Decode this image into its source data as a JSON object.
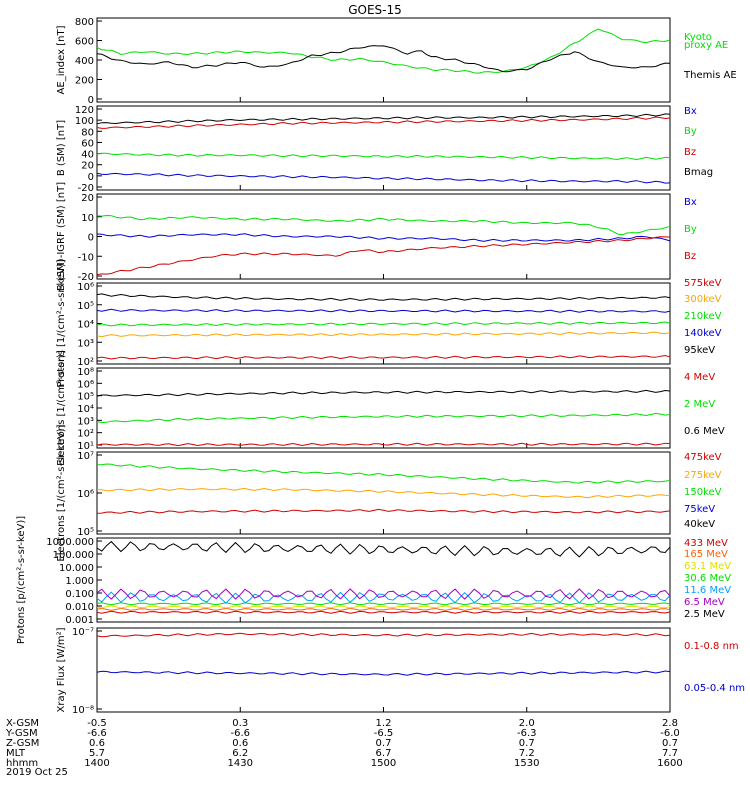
{
  "title": "GOES-15",
  "footer": {
    "rows": [
      {
        "label": "X-GSM",
        "values": [
          "-0.5",
          "0.3",
          "1.2",
          "2.0",
          "2.8"
        ]
      },
      {
        "label": "Y-GSM",
        "values": [
          "-6.6",
          "-6.6",
          "-6.5",
          "-6.3",
          "-6.0"
        ]
      },
      {
        "label": "Z-GSM",
        "values": [
          "0.6",
          "0.6",
          "0.7",
          "0.7",
          "0.7"
        ]
      },
      {
        "label": "MLT",
        "values": [
          "5.7",
          "6.2",
          "6.7",
          "7.2",
          "7.7"
        ]
      },
      {
        "label": "hhmm",
        "values": [
          "1400",
          "1430",
          "1500",
          "1530",
          "1600"
        ]
      }
    ],
    "date": "2019 Oct 25"
  },
  "chart_data": [
    {
      "type": "line",
      "ylabel": "AE_index [nT]",
      "yticks": [
        "0",
        "200",
        "400",
        "600",
        "800"
      ],
      "ylim": [
        0,
        800
      ],
      "xlim": [
        0,
        120
      ],
      "series": [
        {
          "name": "Kyoto proxy AE",
          "color": "#00e000",
          "x": [
            0,
            5,
            10,
            15,
            20,
            25,
            30,
            35,
            40,
            45,
            50,
            55,
            60,
            65,
            70,
            75,
            80,
            85,
            90,
            95,
            100,
            103,
            105,
            110,
            115,
            120
          ],
          "y": [
            520,
            460,
            480,
            460,
            460,
            470,
            480,
            470,
            470,
            430,
            400,
            410,
            380,
            340,
            310,
            300,
            280,
            290,
            330,
            420,
            560,
            640,
            700,
            600,
            570,
            590
          ]
        },
        {
          "name": "Themis AE",
          "color": "#000000",
          "x": [
            0,
            5,
            10,
            15,
            20,
            25,
            30,
            35,
            40,
            45,
            50,
            55,
            60,
            65,
            68,
            70,
            75,
            80,
            85,
            90,
            95,
            100,
            105,
            110,
            115,
            120
          ],
          "y": [
            460,
            390,
            360,
            380,
            330,
            350,
            380,
            330,
            360,
            440,
            470,
            520,
            540,
            460,
            490,
            430,
            400,
            350,
            290,
            310,
            410,
            480,
            380,
            330,
            330,
            370
          ]
        }
      ],
      "labels": [
        {
          "text": "Kyoto",
          "color": "#00e000"
        },
        {
          "text": "proxy AE",
          "color": "#00e000"
        },
        {
          "text": "Themis AE",
          "color": "#000000"
        }
      ]
    },
    {
      "type": "line",
      "ylabel": "B (SM) [nT]",
      "yticks": [
        "-20",
        "0",
        "20",
        "40",
        "60",
        "80",
        "100",
        "120"
      ],
      "ylim": [
        -25,
        120
      ],
      "xlim": [
        0,
        120
      ],
      "series": [
        {
          "name": "Bx",
          "color": "#0000d0",
          "x": [
            0,
            10,
            20,
            30,
            40,
            50,
            60,
            70,
            80,
            90,
            100,
            110,
            120
          ],
          "y": [
            3,
            2,
            0,
            -1,
            -2,
            -3,
            -5,
            -6,
            -8,
            -9,
            -10,
            -10,
            -12
          ]
        },
        {
          "name": "By",
          "color": "#00e000",
          "x": [
            0,
            10,
            20,
            30,
            40,
            50,
            60,
            70,
            80,
            90,
            100,
            110,
            120
          ],
          "y": [
            38,
            36,
            35,
            35,
            34,
            34,
            33,
            33,
            32,
            31,
            30,
            29,
            30
          ]
        },
        {
          "name": "Bz",
          "color": "#d00000",
          "x": [
            0,
            10,
            20,
            30,
            40,
            50,
            60,
            70,
            80,
            90,
            100,
            110,
            120
          ],
          "y": [
            82,
            84,
            86,
            88,
            90,
            91,
            92,
            93,
            94,
            95,
            96,
            98,
            100
          ]
        },
        {
          "name": "Bmag",
          "color": "#000000",
          "x": [
            0,
            10,
            20,
            30,
            40,
            50,
            60,
            70,
            80,
            90,
            100,
            110,
            120
          ],
          "y": [
            90,
            92,
            94,
            96,
            97,
            98,
            99,
            100,
            100,
            101,
            102,
            103,
            105
          ]
        }
      ],
      "labels": [
        {
          "text": "Bx",
          "color": "#0000d0"
        },
        {
          "text": "By",
          "color": "#00e000"
        },
        {
          "text": "Bz",
          "color": "#d00000"
        },
        {
          "text": "Bmag",
          "color": "#000000"
        }
      ]
    },
    {
      "type": "line",
      "ylabel": "B (SM)-IGRF (SM) [nT]",
      "yticks": [
        "-20",
        "-10",
        "0",
        "10",
        "20"
      ],
      "ylim": [
        -22,
        22
      ],
      "xlim": [
        0,
        120
      ],
      "series": [
        {
          "name": "Bx",
          "color": "#0000d0",
          "x": [
            0,
            10,
            20,
            30,
            40,
            50,
            60,
            70,
            80,
            90,
            100,
            110,
            115,
            120
          ],
          "y": [
            1,
            0,
            1,
            1,
            0,
            0,
            -1,
            -1,
            -2,
            -2,
            -2,
            -1,
            0,
            -2
          ]
        },
        {
          "name": "By",
          "color": "#00e000",
          "x": [
            0,
            10,
            20,
            30,
            40,
            50,
            60,
            70,
            80,
            90,
            100,
            105,
            110,
            115,
            120
          ],
          "y": [
            11,
            9,
            10,
            9,
            9,
            8,
            9,
            8,
            8,
            7,
            7,
            5,
            1,
            3,
            5
          ]
        },
        {
          "name": "Bz",
          "color": "#d00000",
          "x": [
            0,
            5,
            10,
            15,
            20,
            25,
            30,
            40,
            50,
            55,
            60,
            70,
            80,
            90,
            100,
            110,
            120
          ],
          "y": [
            -20,
            -18,
            -16,
            -14,
            -12,
            -10,
            -9,
            -9,
            -10,
            -7,
            -8,
            -6,
            -5,
            -4,
            -3,
            -2,
            0
          ]
        }
      ],
      "labels": [
        {
          "text": "Bx",
          "color": "#0000d0"
        },
        {
          "text": "By",
          "color": "#00e000"
        },
        {
          "text": "Bz",
          "color": "#d00000"
        }
      ]
    },
    {
      "type": "line",
      "ylog": true,
      "ylabel": "Protons [1/(cm²-s-sr-keV)]",
      "yticks": [
        "10²",
        "10³",
        "10⁴",
        "10⁵",
        "10⁶"
      ],
      "ylim": [
        70,
        1000000
      ],
      "xlim": [
        0,
        120
      ],
      "series": [
        {
          "name": "575keV",
          "color": "#d00000",
          "x": [
            0,
            30,
            60,
            90,
            120
          ],
          "y": [
            140,
            150,
            150,
            160,
            170
          ]
        },
        {
          "name": "300keV",
          "color": "#ffa500",
          "x": [
            0,
            30,
            60,
            90,
            120
          ],
          "y": [
            2000,
            2200,
            2300,
            2500,
            2800
          ]
        },
        {
          "name": "210keV",
          "color": "#00e000",
          "x": [
            0,
            30,
            60,
            90,
            120
          ],
          "y": [
            7000,
            7500,
            8000,
            8500,
            9000
          ]
        },
        {
          "name": "140keV",
          "color": "#0000d0",
          "x": [
            0,
            30,
            60,
            90,
            120
          ],
          "y": [
            40000,
            38000,
            37000,
            36000,
            35000
          ]
        },
        {
          "name": "95keV",
          "color": "#000000",
          "x": [
            0,
            20,
            40,
            60,
            80,
            100,
            120
          ],
          "y": [
            250000,
            180000,
            150000,
            140000,
            150000,
            160000,
            180000
          ]
        }
      ],
      "labels": [
        {
          "text": "575keV",
          "color": "#d00000"
        },
        {
          "text": "300keV",
          "color": "#ffa500"
        },
        {
          "text": "210keV",
          "color": "#00e000"
        },
        {
          "text": "140keV",
          "color": "#0000d0"
        },
        {
          "text": "95keV",
          "color": "#000000"
        }
      ]
    },
    {
      "type": "line",
      "ylog": true,
      "ylabel": "Electrons [1/(cm²-s-sr)]",
      "yticks": [
        "10¹",
        "10²",
        "10³",
        "10⁴",
        "10⁵",
        "10⁶",
        "10⁸"
      ],
      "ylim": [
        8,
        100000000
      ],
      "xlim": [
        0,
        120
      ],
      "series": [
        {
          "name": "4 MeV",
          "color": "#d00000",
          "x": [
            0,
            30,
            60,
            90,
            120
          ],
          "y": [
            16,
            16,
            17,
            17,
            18
          ]
        },
        {
          "name": "2 MeV",
          "color": "#00e000",
          "x": [
            0,
            20,
            40,
            60,
            80,
            100,
            120
          ],
          "y": [
            1600,
            3000,
            4000,
            5000,
            5500,
            6000,
            8000
          ]
        },
        {
          "name": "0.6 MeV",
          "color": "#000000",
          "x": [
            0,
            20,
            40,
            60,
            80,
            100,
            120
          ],
          "y": [
            350000,
            450000,
            600000,
            700000,
            750000,
            800000,
            850000
          ]
        }
      ],
      "labels": [
        {
          "text": "4 MeV",
          "color": "#d00000"
        },
        {
          "text": "2 MeV",
          "color": "#00e000"
        },
        {
          "text": "0.6 MeV",
          "color": "#000000"
        }
      ]
    },
    {
      "type": "line",
      "ylog": true,
      "ylabel": "Electrons [1/(cm²-s-sr-keV)]",
      "yticks": [
        "10⁵",
        "10⁶",
        "10⁷"
      ],
      "ylim": [
        20000,
        10000000
      ],
      "xlim": [
        0,
        120
      ],
      "series": [
        {
          "name": "475keV",
          "color": "#d00000",
          "x": [
            0,
            20,
            40,
            60,
            80,
            100,
            120
          ],
          "y": [
            100000,
            110000,
            115000,
            120000,
            110000,
            105000,
            110000
          ]
        },
        {
          "name": "275keV",
          "color": "#ffa500",
          "x": [
            0,
            20,
            40,
            60,
            80,
            100,
            120
          ],
          "y": [
            550000,
            600000,
            580000,
            500000,
            400000,
            330000,
            380000
          ]
        },
        {
          "name": "150keV",
          "color": "#00e000",
          "x": [
            0,
            20,
            40,
            60,
            80,
            100,
            120
          ],
          "y": [
            4000000,
            2800000,
            2200000,
            1800000,
            1300000,
            1000000,
            1100000
          ]
        }
      ],
      "labels": [
        {
          "text": "475keV",
          "color": "#d00000"
        },
        {
          "text": "275keV",
          "color": "#ffa500"
        },
        {
          "text": "150keV",
          "color": "#00e000"
        },
        {
          "text": "75keV",
          "color": "#0000d0"
        },
        {
          "text": "40keV",
          "color": "#000000"
        }
      ]
    },
    {
      "type": "line",
      "ylog": true,
      "ylabel": "Protons [p/(cm²-s-sr-keV)]",
      "yticks": [
        "0.001",
        "0.010",
        "0.100",
        "1.000",
        "10.000",
        "100.000",
        "1000.000"
      ],
      "ylim": [
        0.001,
        1000
      ],
      "xlim": [
        0,
        120
      ],
      "series": [
        {
          "name": "433 MeV",
          "color": "#d00000",
          "x": [
            0,
            30,
            60,
            90,
            120
          ],
          "y": [
            0.005,
            0.005,
            0.005,
            0.005,
            0.005
          ]
        },
        {
          "name": "165 MeV",
          "color": "#ff6000",
          "x": [
            0,
            30,
            60,
            90,
            120
          ],
          "y": [
            0.008,
            0.008,
            0.008,
            0.008,
            0.008
          ]
        },
        {
          "name": "63.1 MeV",
          "color": "#e0e000",
          "x": [
            0,
            30,
            60,
            90,
            120
          ],
          "y": [
            0.012,
            0.012,
            0.012,
            0.012,
            0.012
          ]
        },
        {
          "name": "30.6 MeV",
          "color": "#00e000",
          "x": [
            0,
            30,
            60,
            90,
            120
          ],
          "y": [
            0.02,
            0.02,
            0.02,
            0.02,
            0.02
          ]
        },
        {
          "name": "11.6 MeV",
          "color": "#00a0ff",
          "x": [
            0,
            30,
            60,
            90,
            120
          ],
          "y": [
            0.06,
            0.05,
            0.06,
            0.05,
            0.06
          ]
        },
        {
          "name": "6.5 MeV",
          "color": "#a000c0",
          "x": [
            0,
            30,
            60,
            90,
            120
          ],
          "y": [
            0.1,
            0.1,
            0.1,
            0.1,
            0.1
          ]
        },
        {
          "name": "2.5 MeV",
          "color": "#000000",
          "x": [
            0,
            20,
            40,
            60,
            80,
            100,
            120
          ],
          "y": [
            250,
            230,
            180,
            150,
            120,
            100,
            160
          ]
        }
      ],
      "labels": [
        {
          "text": "433 MeV",
          "color": "#d00000"
        },
        {
          "text": "165 MeV",
          "color": "#ff6000"
        },
        {
          "text": "63.1 MeV",
          "color": "#e0e000"
        },
        {
          "text": "30.6 MeV",
          "color": "#00e000"
        },
        {
          "text": "11.6 MeV",
          "color": "#00a0ff"
        },
        {
          "text": "6.5 MeV",
          "color": "#a000c0"
        },
        {
          "text": "2.5 MeV",
          "color": "#000000"
        }
      ]
    },
    {
      "type": "line",
      "ylog": true,
      "ylabel": "Xray Flux [W/m²]",
      "yticks": [
        "10⁻⁸",
        "10⁻⁷"
      ],
      "ylim": [
        1e-08,
        1e-07
      ],
      "xlim": [
        0,
        120
      ],
      "series": [
        {
          "name": "0.1–0.8 nm",
          "color": "#d00000",
          "x": [
            0,
            30,
            60,
            90,
            120
          ],
          "y": [
            8e-08,
            8.5e-08,
            8.2e-08,
            8.4e-08,
            8.3e-08
          ]
        },
        {
          "name": "0.05–0.4 nm",
          "color": "#0000d0",
          "x": [
            0,
            30,
            60,
            90,
            120
          ],
          "y": [
            3e-08,
            2.9e-08,
            2.8e-08,
            2.9e-08,
            3e-08
          ]
        }
      ],
      "labels": [
        {
          "text": "0.1-0.8 nm",
          "color": "#d00000"
        },
        {
          "text": "0.05-0.4 nm",
          "color": "#0000d0"
        }
      ]
    }
  ]
}
